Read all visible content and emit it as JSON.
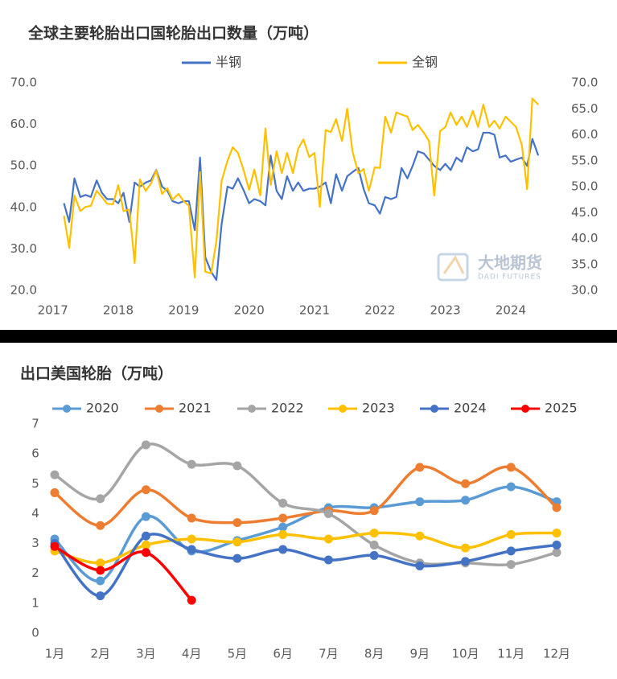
{
  "chart_data": [
    {
      "type": "line",
      "title": "全球主要轮胎出口国轮胎出口数量（万吨）",
      "x": [
        2017.17,
        2017.25,
        2017.33,
        2017.42,
        2017.5,
        2017.58,
        2017.67,
        2017.75,
        2017.83,
        2017.92,
        2018,
        2018.08,
        2018.17,
        2018.25,
        2018.33,
        2018.42,
        2018.5,
        2018.58,
        2018.67,
        2018.75,
        2018.83,
        2018.92,
        2019,
        2019.08,
        2019.17,
        2019.25,
        2019.33,
        2019.42,
        2019.5,
        2019.58,
        2019.67,
        2019.75,
        2019.83,
        2019.92,
        2020,
        2020.08,
        2020.17,
        2020.25,
        2020.33,
        2020.42,
        2020.5,
        2020.58,
        2020.67,
        2020.75,
        2020.83,
        2020.92,
        2021,
        2021.08,
        2021.17,
        2021.25,
        2021.33,
        2021.42,
        2021.5,
        2021.58,
        2021.67,
        2021.75,
        2021.83,
        2021.92,
        2022,
        2022.08,
        2022.17,
        2022.25,
        2022.33,
        2022.42,
        2022.5,
        2022.58,
        2022.67,
        2022.75,
        2022.83,
        2022.92,
        2023,
        2023.08,
        2023.17,
        2023.25,
        2023.33,
        2023.42,
        2023.5,
        2023.58,
        2023.67,
        2023.75,
        2023.83,
        2023.92,
        2024,
        2024.08,
        2024.17,
        2024.25,
        2024.33,
        2024.42
      ],
      "series": [
        {
          "name": "半钢",
          "color": "#4472c4",
          "values": [
            41,
            36.5,
            47,
            42.5,
            43,
            42.5,
            46.5,
            43.5,
            42,
            42,
            41,
            43.5,
            36.5,
            46,
            45,
            46,
            46.5,
            49,
            45,
            44,
            41.5,
            41,
            41.5,
            41.5,
            34.5,
            52,
            28,
            24.5,
            22.5,
            36,
            45,
            44.5,
            47,
            44,
            41,
            42,
            41.5,
            40.5,
            52.5,
            44,
            42,
            47.5,
            44,
            46,
            44,
            44.5,
            44.5,
            45,
            46,
            41,
            48,
            44,
            47.5,
            48.5,
            49.5,
            44.5,
            41,
            40.5,
            38.5,
            42.5,
            42,
            42.5,
            49.5,
            47,
            50,
            53.5,
            53,
            51.5,
            50,
            49,
            50.5,
            49,
            52,
            51,
            54.5,
            53.5,
            54,
            58,
            58,
            57.5,
            52,
            52.5,
            51,
            51.5,
            52,
            50,
            56.5,
            52.5
          ]
        },
        {
          "name": "全钢",
          "color": "#ffc000",
          "axis": "y2",
          "values": [
            44.4,
            38.2,
            48.3,
            45.3,
            46.1,
            46.3,
            49.2,
            48,
            46.7,
            46.6,
            50.3,
            45.3,
            45.6,
            35.3,
            51.4,
            49.2,
            50.6,
            53.1,
            48.6,
            49.7,
            47.5,
            48.6,
            47.2,
            46.3,
            32.5,
            52.8,
            33.6,
            33.3,
            39.5,
            51.1,
            55,
            57.6,
            56.5,
            53,
            49.4,
            53.3,
            48.3,
            61.2,
            50.3,
            56.8,
            52.6,
            56.5,
            52.6,
            57.3,
            59.1,
            55.7,
            56.5,
            46.1,
            60.9,
            60.5,
            63,
            58.8,
            65,
            56.8,
            52.6,
            53.4,
            49.2,
            53.7,
            53.6,
            63.5,
            60.4,
            64.3,
            63.9,
            63.5,
            60.9,
            61.9,
            60.4,
            58.8,
            48.3,
            60.7,
            61.5,
            64.3,
            61.9,
            63.5,
            61.5,
            64.6,
            61.5,
            65.8,
            61.5,
            62.7,
            61.2,
            63.5,
            62.5,
            61.5,
            58,
            49.5,
            67,
            65.8
          ]
        }
      ],
      "xlim": [
        2016.93,
        2024.8
      ],
      "xticks": [
        2017,
        2018,
        2019,
        2020,
        2021,
        2022,
        2023,
        2024
      ],
      "ylim": [
        20,
        70
      ],
      "yticks": [
        {
          "value": 20,
          "label": "20.0"
        },
        {
          "value": 30,
          "label": "30.0"
        },
        {
          "value": 40,
          "label": "40.0"
        },
        {
          "value": 50,
          "label": "50.0"
        },
        {
          "value": 60,
          "label": "60.0"
        },
        {
          "value": 70,
          "label": "70.0"
        }
      ],
      "y2lim": [
        30,
        70
      ],
      "y2ticks": [
        {
          "value": 30,
          "label": "30.0"
        },
        {
          "value": 35,
          "label": "35.0"
        },
        {
          "value": 40,
          "label": "40.0"
        },
        {
          "value": 45,
          "label": "45.0"
        },
        {
          "value": 50,
          "label": "50.0"
        },
        {
          "value": 55,
          "label": "55.0"
        },
        {
          "value": 60,
          "label": "60.0"
        },
        {
          "value": 65,
          "label": "65.0"
        },
        {
          "value": 70,
          "label": "70.0"
        }
      ],
      "grid": false,
      "legend": "top",
      "annotations": [
        "大地期货",
        "DADI FUTURES"
      ]
    },
    {
      "type": "line",
      "title": "出口美国轮胎（万吨）",
      "smooth": true,
      "markers": true,
      "categories": [
        "1月",
        "2月",
        "3月",
        "4月",
        "5月",
        "6月",
        "7月",
        "8月",
        "9月",
        "10月",
        "11月",
        "12月"
      ],
      "series": [
        {
          "name": "2020",
          "color": "#5b9bd5",
          "values": [
            3.15,
            1.75,
            3.9,
            2.75,
            3.1,
            3.55,
            4.2,
            4.2,
            4.4,
            4.45,
            4.9,
            4.4
          ]
        },
        {
          "name": "2021",
          "color": "#ed7d31",
          "values": [
            4.7,
            3.6,
            4.8,
            3.85,
            3.7,
            3.85,
            4.1,
            4.1,
            5.55,
            5.0,
            5.55,
            4.2
          ]
        },
        {
          "name": "2022",
          "color": "#a5a5a5",
          "values": [
            5.3,
            4.5,
            6.3,
            5.65,
            5.6,
            4.35,
            4.0,
            2.95,
            2.35,
            2.35,
            2.3,
            2.7
          ]
        },
        {
          "name": "2023",
          "color": "#ffc000",
          "values": [
            2.75,
            2.35,
            2.95,
            3.15,
            3.05,
            3.3,
            3.15,
            3.35,
            3.25,
            2.85,
            3.3,
            3.35
          ]
        },
        {
          "name": "2024",
          "color": "#4472c4",
          "values": [
            3.0,
            1.25,
            3.25,
            2.8,
            2.5,
            2.8,
            2.45,
            2.6,
            2.25,
            2.4,
            2.75,
            2.95
          ]
        },
        {
          "name": "2025",
          "color": "#ff0000",
          "values": [
            2.9,
            2.1,
            2.7,
            1.1,
            null,
            null,
            null,
            null,
            null,
            null,
            null,
            null
          ]
        }
      ],
      "ylim": [
        0,
        7
      ],
      "yticks": [
        0,
        1,
        2,
        3,
        4,
        5,
        6,
        7
      ],
      "grid": false,
      "legend": "top"
    }
  ]
}
